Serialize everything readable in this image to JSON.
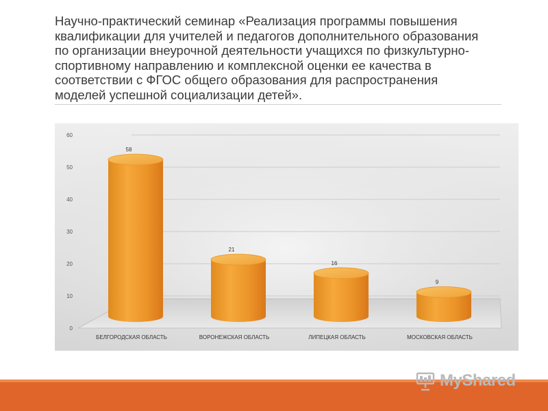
{
  "slide": {
    "title": "Научно-практический семинар «Реализация программы повышения\nквалификации для учителей и педагогов дополнительного образования\nпо организации внеурочной деятельности учащихся по физкультурно-\nспортивному направлению и комплексной оценки ее качества в\nсоответствии с ФГОС общего образования для распространения\nмоделей успешной социализации детей».",
    "watermark": "MyShared"
  },
  "colors": {
    "bar": "#f0a030",
    "bar_dark": "#d9781a",
    "bar_top": "#f7b84a",
    "accent_band": "#e0652a",
    "panel_bg": "#e4e4e4"
  },
  "chart_data": {
    "type": "bar",
    "style": "3d-cylinder",
    "categories": [
      "БЕЛГОРОДСКАЯ ОБЛАСТЬ",
      "ВОРОНЕЖСКАЯ ОБЛАСТЬ",
      "ЛИПЕЦКАЯ ОБЛАСТЬ",
      "МОСКОВСКАЯ ОБЛАСТЬ"
    ],
    "values": [
      58,
      21,
      16,
      9
    ],
    "data_labels": [
      "58",
      "21",
      "16",
      "9"
    ],
    "yticks": [
      "0",
      "10",
      "20",
      "30",
      "40",
      "50",
      "60"
    ],
    "ylim": [
      0,
      60
    ],
    "grid": true,
    "legend": "none",
    "title": "",
    "xlabel": "",
    "ylabel": ""
  }
}
